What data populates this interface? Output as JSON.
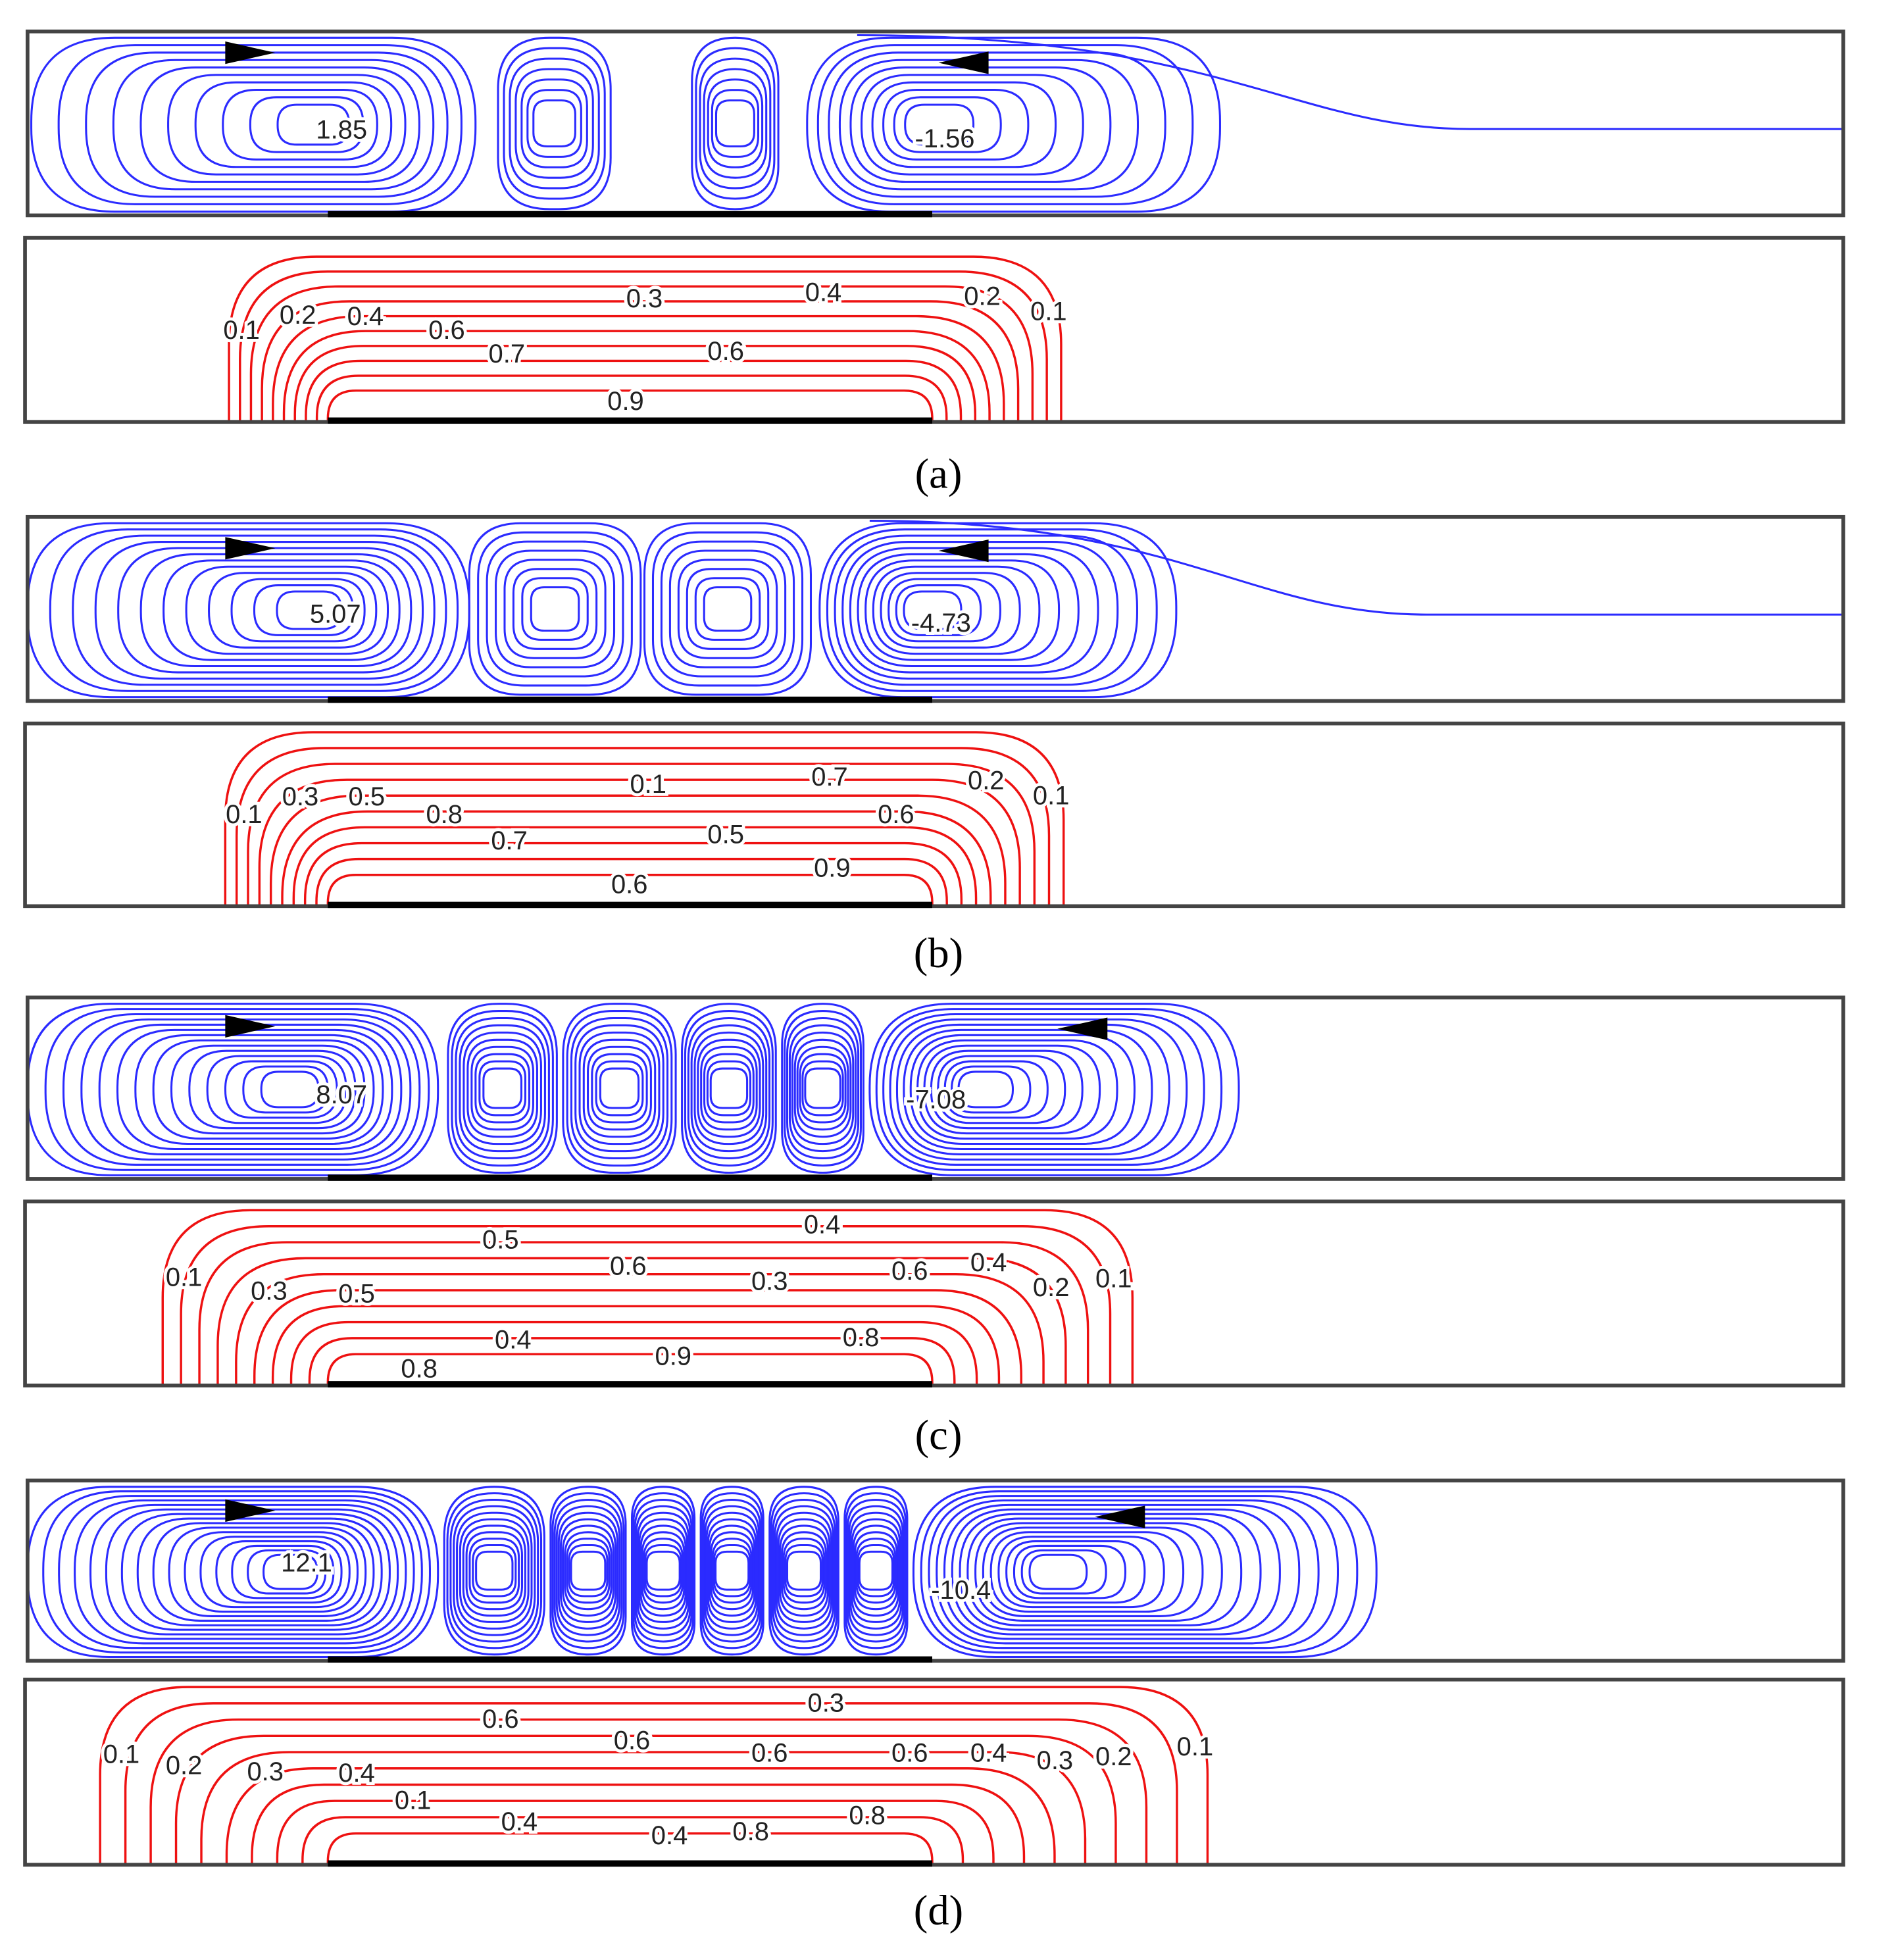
{
  "panels": [
    {
      "caption": "(a)",
      "streamfunction_labels": [
        "1.85",
        "-1.56"
      ],
      "isotherm_labels": [
        "0.1",
        "0.2",
        "0.4",
        "0.6",
        "0.7",
        "0.3",
        "0.6",
        "0.9",
        "0.4",
        "0.2",
        "0.1"
      ]
    },
    {
      "caption": "(b)",
      "streamfunction_labels": [
        "5.07",
        "-4.73"
      ],
      "isotherm_labels": [
        "0.1",
        "0.3",
        "0.5",
        "0.8",
        "0.7",
        "0.1",
        "0.5",
        "0.6",
        "0.7",
        "0.6",
        "0.9",
        "0.2",
        "0.1"
      ]
    },
    {
      "caption": "(c)",
      "streamfunction_labels": [
        "8.07",
        "-7.08"
      ],
      "isotherm_labels": [
        "0.1",
        "0.3",
        "0.5",
        "0.5",
        "0.8",
        "0.4",
        "0.6",
        "0.9",
        "0.3",
        "0.4",
        "0.6",
        "0.8",
        "0.4",
        "0.2",
        "0.1"
      ]
    },
    {
      "caption": "(d)",
      "streamfunction_labels": [
        "12.1",
        "-10.4"
      ],
      "isotherm_labels": [
        "0.1",
        "0.2",
        "0.3",
        "0.4",
        "0.6",
        "0.6",
        "0.1",
        "0.4",
        "0.4",
        "0.6",
        "0.8",
        "0.3",
        "0.8",
        "0.6",
        "0.4",
        "0.3",
        "0.2",
        "0.1"
      ]
    }
  ]
}
